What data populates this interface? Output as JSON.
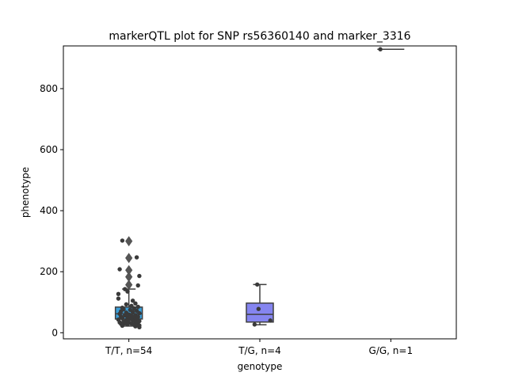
{
  "chart_data": {
    "type": "box",
    "title": "markerQTL plot for SNP rs56360140 and marker_3316",
    "xlabel": "genotype",
    "ylabel": "phenotype",
    "ylim": [
      -20,
      940
    ],
    "yticks": [
      0,
      200,
      400,
      600,
      800
    ],
    "grid": false,
    "categories": [
      "T/T, n=54",
      "T/G, n=4",
      "G/G, n=1"
    ],
    "boxes": [
      {
        "category": "T/T, n=54",
        "color": "#3b9fd9",
        "q1": 45,
        "median": 62,
        "q3": 84,
        "whisker_low": 22,
        "whisker_high": 143,
        "outliers": [
          157,
          183,
          205,
          245,
          300
        ]
      },
      {
        "category": "T/G, n=4",
        "color": "#8585f0",
        "q1": 35,
        "median": 60,
        "q3": 97,
        "whisker_low": 26,
        "whisker_high": 158,
        "outliers": []
      },
      {
        "category": "G/G, n=1",
        "color": "#3b9fd9",
        "q1": 929,
        "median": 929,
        "q3": 929,
        "whisker_low": 929,
        "whisker_high": 929,
        "outliers": []
      }
    ],
    "points": [
      {
        "category": 0,
        "jitter": -0.05,
        "value": 302
      },
      {
        "category": 0,
        "jitter": 0.06,
        "value": 247
      },
      {
        "category": 0,
        "jitter": -0.07,
        "value": 208
      },
      {
        "category": 0,
        "jitter": 0.08,
        "value": 186
      },
      {
        "category": 0,
        "jitter": 0.07,
        "value": 155
      },
      {
        "category": 0,
        "jitter": -0.03,
        "value": 143
      },
      {
        "category": 0,
        "jitter": -0.01,
        "value": 135
      },
      {
        "category": 0,
        "jitter": -0.08,
        "value": 127
      },
      {
        "category": 0,
        "jitter": -0.08,
        "value": 112
      },
      {
        "category": 0,
        "jitter": 0.03,
        "value": 105
      },
      {
        "category": 0,
        "jitter": 0.05,
        "value": 96
      },
      {
        "category": 0,
        "jitter": -0.02,
        "value": 93
      },
      {
        "category": 0,
        "jitter": 0.02,
        "value": 88
      },
      {
        "category": 0,
        "jitter": 0.07,
        "value": 85
      },
      {
        "category": 0,
        "jitter": -0.05,
        "value": 82
      },
      {
        "category": 0,
        "jitter": 0.04,
        "value": 80
      },
      {
        "category": 0,
        "jitter": -0.04,
        "value": 77
      },
      {
        "category": 0,
        "jitter": 0.01,
        "value": 75
      },
      {
        "category": 0,
        "jitter": 0.06,
        "value": 72
      },
      {
        "category": 0,
        "jitter": -0.06,
        "value": 70
      },
      {
        "category": 0,
        "jitter": 0.03,
        "value": 68
      },
      {
        "category": 0,
        "jitter": -0.02,
        "value": 66
      },
      {
        "category": 0,
        "jitter": 0.08,
        "value": 64
      },
      {
        "category": 0,
        "jitter": -0.07,
        "value": 62
      },
      {
        "category": 0,
        "jitter": 0.0,
        "value": 60
      },
      {
        "category": 0,
        "jitter": 0.05,
        "value": 58
      },
      {
        "category": 0,
        "jitter": -0.03,
        "value": 57
      },
      {
        "category": 0,
        "jitter": 0.02,
        "value": 55
      },
      {
        "category": 0,
        "jitter": -0.06,
        "value": 53
      },
      {
        "category": 0,
        "jitter": 0.07,
        "value": 52
      },
      {
        "category": 0,
        "jitter": -0.01,
        "value": 50
      },
      {
        "category": 0,
        "jitter": 0.04,
        "value": 48
      },
      {
        "category": 0,
        "jitter": -0.05,
        "value": 47
      },
      {
        "category": 0,
        "jitter": 0.01,
        "value": 45
      },
      {
        "category": 0,
        "jitter": 0.06,
        "value": 44
      },
      {
        "category": 0,
        "jitter": -0.08,
        "value": 43
      },
      {
        "category": 0,
        "jitter": -0.02,
        "value": 41
      },
      {
        "category": 0,
        "jitter": 0.03,
        "value": 40
      },
      {
        "category": 0,
        "jitter": 0.08,
        "value": 38
      },
      {
        "category": 0,
        "jitter": -0.04,
        "value": 36
      },
      {
        "category": 0,
        "jitter": 0.05,
        "value": 35
      },
      {
        "category": 0,
        "jitter": -0.07,
        "value": 34
      },
      {
        "category": 0,
        "jitter": 0.0,
        "value": 33
      },
      {
        "category": 0,
        "jitter": 0.06,
        "value": 32
      },
      {
        "category": 0,
        "jitter": -0.03,
        "value": 31
      },
      {
        "category": 0,
        "jitter": 0.02,
        "value": 30
      },
      {
        "category": 0,
        "jitter": -0.06,
        "value": 29
      },
      {
        "category": 0,
        "jitter": 0.07,
        "value": 28
      },
      {
        "category": 0,
        "jitter": -0.01,
        "value": 27
      },
      {
        "category": 0,
        "jitter": 0.04,
        "value": 26
      },
      {
        "category": 0,
        "jitter": 0.08,
        "value": 24
      },
      {
        "category": 0,
        "jitter": -0.05,
        "value": 23
      },
      {
        "category": 0,
        "jitter": 0.05,
        "value": 21
      },
      {
        "category": 0,
        "jitter": 0.08,
        "value": 18
      },
      {
        "category": 1,
        "jitter": -0.02,
        "value": 158
      },
      {
        "category": 1,
        "jitter": -0.01,
        "value": 78
      },
      {
        "category": 1,
        "jitter": 0.08,
        "value": 40
      },
      {
        "category": 1,
        "jitter": -0.04,
        "value": 27
      },
      {
        "category": 2,
        "jitter": -0.08,
        "value": 929
      }
    ]
  }
}
